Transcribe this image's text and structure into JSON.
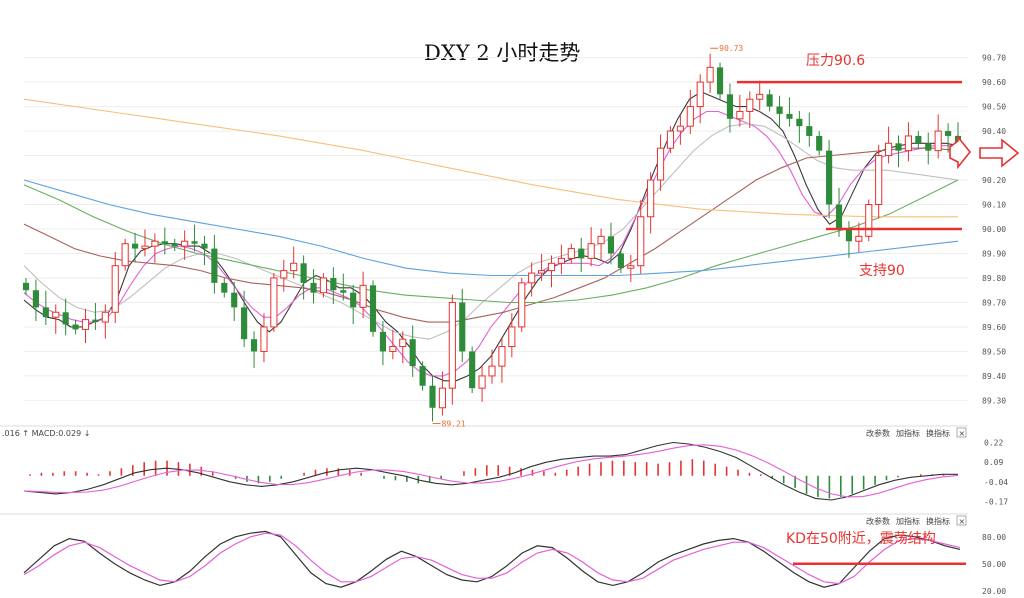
{
  "title": "DXY 2 小时走势",
  "chart_data": [
    {
      "panel": "price",
      "type": "candlestick",
      "title": "DXY 2 小时走势",
      "y_ticks": [
        "90.70",
        "90.60",
        "90.50",
        "90.40",
        "90.30",
        "90.20",
        "90.10",
        "90.00",
        "89.90",
        "89.80",
        "89.70",
        "89.60",
        "89.50",
        "89.40",
        "89.30"
      ],
      "ylim": [
        89.22,
        90.78
      ],
      "high_label": "90.73",
      "low_label": "89.21",
      "closes": [
        89.75,
        89.68,
        89.64,
        89.66,
        89.61,
        89.59,
        89.63,
        89.62,
        89.66,
        89.85,
        89.94,
        89.92,
        89.93,
        89.95,
        89.94,
        89.93,
        89.95,
        89.94,
        89.92,
        89.78,
        89.74,
        89.68,
        89.55,
        89.5,
        89.6,
        89.8,
        89.83,
        89.86,
        89.78,
        89.74,
        89.8,
        89.75,
        89.74,
        89.68,
        89.77,
        89.58,
        89.5,
        89.52,
        89.55,
        89.44,
        89.36,
        89.27,
        89.35,
        89.7,
        89.5,
        89.35,
        89.4,
        89.44,
        89.52,
        89.6,
        89.78,
        89.82,
        89.83,
        89.86,
        89.88,
        89.92,
        89.88,
        89.94,
        89.97,
        89.9,
        89.84,
        89.85,
        90.05,
        90.2,
        90.33,
        90.4,
        90.42,
        90.5,
        90.6,
        90.66,
        90.55,
        90.45,
        90.48,
        90.53,
        90.55,
        90.5,
        90.47,
        90.45,
        90.42,
        90.38,
        90.32,
        90.1,
        90.0,
        89.95,
        89.97,
        90.1,
        90.3,
        90.35,
        90.32,
        90.38,
        90.35,
        90.32,
        90.4,
        90.38,
        90.32
      ],
      "ma_series": [
        {
          "color": "#3a3a3a",
          "values": [
            89.71,
            89.67,
            89.64,
            89.63,
            89.6,
            89.6,
            89.62,
            89.64,
            89.72,
            89.85,
            89.91,
            89.93,
            89.94,
            89.94,
            89.93,
            89.93,
            89.9,
            89.84,
            89.77,
            89.69,
            89.62,
            89.58,
            89.62,
            89.7,
            89.78,
            89.81,
            89.79,
            89.76,
            89.76,
            89.73,
            89.68,
            89.62,
            89.58,
            89.52,
            89.45,
            89.4,
            89.38,
            89.38,
            89.4,
            89.43,
            89.48,
            89.56,
            89.64,
            89.72,
            89.79,
            89.84,
            89.86,
            89.88,
            89.89,
            89.88,
            89.86,
            89.9,
            90.0,
            90.12,
            90.24,
            90.35,
            90.45,
            90.53,
            90.56,
            90.54,
            90.52,
            90.5,
            90.5,
            90.48,
            90.45,
            90.4,
            90.3,
            90.18,
            90.08,
            90.02,
            90.05,
            90.15,
            90.25,
            90.31,
            90.33,
            90.34,
            90.35,
            90.35,
            90.35,
            90.35,
            90.34
          ]
        },
        {
          "color": "#e65fd8",
          "values": [
            89.74,
            89.7,
            89.67,
            89.65,
            89.63,
            89.62,
            89.62,
            89.64,
            89.7,
            89.78,
            89.85,
            89.9,
            89.92,
            89.93,
            89.92,
            89.9,
            89.86,
            89.8,
            89.74,
            89.68,
            89.64,
            89.64,
            89.68,
            89.73,
            89.76,
            89.76,
            89.74,
            89.72,
            89.69,
            89.64,
            89.58,
            89.52,
            89.46,
            89.42,
            89.4,
            89.4,
            89.42,
            89.46,
            89.52,
            89.6,
            89.66,
            89.72,
            89.78,
            89.82,
            89.85,
            89.86,
            89.86,
            89.86,
            89.85,
            89.88,
            89.94,
            90.04,
            90.14,
            90.24,
            90.33,
            90.4,
            90.45,
            90.48,
            90.48,
            90.46,
            90.44,
            90.42,
            90.38,
            90.32,
            90.24,
            90.14,
            90.07,
            90.05,
            90.1,
            90.18,
            90.24,
            90.28,
            90.3,
            90.31,
            90.32,
            90.33,
            90.34,
            90.34,
            90.34
          ]
        },
        {
          "color": "#bfbfbf",
          "values": [
            89.85,
            89.78,
            89.72,
            89.68,
            89.66,
            89.67,
            89.72,
            89.78,
            89.84,
            89.88,
            89.9,
            89.9,
            89.88,
            89.85,
            89.82,
            89.79,
            89.76,
            89.73,
            89.7,
            89.66,
            89.62,
            89.58,
            89.56,
            89.55,
            89.58,
            89.63,
            89.7,
            89.76,
            89.82,
            89.86,
            89.88,
            89.9,
            89.92,
            89.95,
            90.0,
            90.08,
            90.16,
            90.24,
            90.32,
            90.38,
            90.42,
            90.43,
            90.42,
            90.38,
            90.33,
            90.28,
            90.25,
            90.24,
            90.24,
            90.24,
            90.23,
            90.22,
            90.21,
            90.2
          ]
        },
        {
          "color": "#a8615c",
          "values": [
            90.02,
            89.97,
            89.92,
            89.89,
            89.87,
            89.86,
            89.85,
            89.83,
            89.8,
            89.78,
            89.77,
            89.76,
            89.74,
            89.71,
            89.67,
            89.64,
            89.62,
            89.62,
            89.64,
            89.66,
            89.69,
            89.72,
            89.76,
            89.8,
            89.86,
            89.92,
            89.99,
            90.06,
            90.13,
            90.2,
            90.25,
            90.29,
            90.3,
            90.31,
            90.32,
            90.33,
            90.33,
            90.32
          ]
        },
        {
          "color": "#6aae62",
          "values": [
            90.18,
            90.12,
            90.05,
            89.99,
            89.94,
            89.9,
            89.87,
            89.84,
            89.81,
            89.78,
            89.75,
            89.73,
            89.72,
            89.71,
            89.7,
            89.7,
            89.71,
            89.73,
            89.76,
            89.8,
            89.85,
            89.89,
            89.93,
            89.97,
            90.01,
            90.06,
            90.13,
            90.2
          ]
        },
        {
          "color": "#5aa2e0",
          "values": [
            90.2,
            90.15,
            90.1,
            90.06,
            90.03,
            90.0,
            89.97,
            89.93,
            89.88,
            89.84,
            89.82,
            89.81,
            89.81,
            89.81,
            89.81,
            89.82,
            89.83,
            89.85,
            89.87,
            89.89,
            89.91,
            89.93,
            89.95
          ]
        },
        {
          "color": "#f6c07a",
          "values": [
            90.53,
            90.48,
            90.43,
            90.38,
            90.32,
            90.25,
            90.18,
            90.12,
            90.08,
            90.06,
            90.05,
            90.05
          ]
        }
      ]
    },
    {
      "panel": "macd",
      "type": "bar+line",
      "legend_text": ".016 ↑ MACD:0.029 ↓",
      "y_ticks": [
        "0.22",
        "0.09",
        "-0.04",
        "-0.17"
      ],
      "ylim": [
        -0.2,
        0.25
      ],
      "histogram": [
        0.01,
        0.02,
        0.02,
        0.03,
        0.03,
        0.02,
        0.01,
        0.03,
        0.05,
        0.07,
        0.09,
        0.1,
        0.1,
        0.09,
        0.08,
        0.06,
        0.03,
        0.0,
        -0.02,
        -0.04,
        -0.05,
        -0.04,
        -0.02,
        0.0,
        0.02,
        0.04,
        0.05,
        0.05,
        0.04,
        0.02,
        0.0,
        -0.02,
        -0.03,
        -0.04,
        -0.05,
        -0.04,
        -0.02,
        0.0,
        0.03,
        0.05,
        0.07,
        0.07,
        0.06,
        0.05,
        0.04,
        0.03,
        0.02,
        0.04,
        0.06,
        0.08,
        0.09,
        0.1,
        0.1,
        0.09,
        0.09,
        0.08,
        0.09,
        0.1,
        0.11,
        0.1,
        0.08,
        0.06,
        0.04,
        0.02,
        0.01,
        -0.02,
        -0.05,
        -0.08,
        -0.12,
        -0.14,
        -0.15,
        -0.14,
        -0.12,
        -0.09,
        -0.06,
        -0.03,
        -0.01,
        0.0,
        0.01,
        0.01,
        0.01,
        0.0
      ],
      "macd_line": [
        -0.1,
        -0.11,
        -0.12,
        -0.11,
        -0.09,
        -0.06,
        -0.02,
        0.02,
        0.04,
        0.05,
        0.04,
        0.02,
        -0.01,
        -0.04,
        -0.06,
        -0.07,
        -0.06,
        -0.04,
        -0.01,
        0.02,
        0.04,
        0.05,
        0.04,
        0.02,
        0.0,
        -0.03,
        -0.05,
        -0.06,
        -0.05,
        -0.03,
        -0.01,
        0.02,
        0.06,
        0.09,
        0.11,
        0.12,
        0.13,
        0.13,
        0.14,
        0.17,
        0.2,
        0.22,
        0.21,
        0.19,
        0.16,
        0.12,
        0.06,
        0.0,
        -0.06,
        -0.11,
        -0.15,
        -0.16,
        -0.14,
        -0.1,
        -0.06,
        -0.03,
        -0.01,
        0.0,
        0.01,
        0.01
      ]
    },
    {
      "panel": "kd",
      "type": "line",
      "y_ticks": [
        "80.00",
        "50.00",
        "20.00"
      ],
      "ylim": [
        12,
        92
      ],
      "k_line": [
        40,
        55,
        70,
        78,
        75,
        62,
        50,
        40,
        32,
        26,
        30,
        42,
        58,
        72,
        80,
        84,
        86,
        80,
        60,
        40,
        28,
        24,
        30,
        42,
        55,
        64,
        58,
        48,
        38,
        32,
        30,
        36,
        48,
        62,
        70,
        68,
        56,
        42,
        30,
        26,
        30,
        40,
        52,
        60,
        66,
        72,
        76,
        78,
        74,
        64,
        52,
        40,
        30,
        24,
        28,
        46,
        64,
        78,
        82,
        80,
        76,
        70,
        66
      ],
      "d_line": [
        38,
        48,
        60,
        70,
        74,
        68,
        58,
        48,
        40,
        32,
        30,
        36,
        48,
        62,
        72,
        80,
        84,
        82,
        70,
        54,
        40,
        30,
        30,
        36,
        46,
        56,
        58,
        54,
        46,
        38,
        34,
        34,
        40,
        52,
        62,
        66,
        62,
        52,
        40,
        32,
        30,
        34,
        44,
        54,
        60,
        66,
        70,
        74,
        74,
        68,
        58,
        48,
        38,
        30,
        28,
        36,
        52,
        66,
        76,
        78,
        76,
        72,
        68
      ]
    }
  ],
  "annotations": {
    "resistance": {
      "label": "压力90.6",
      "value": 90.6
    },
    "support": {
      "label": "支持90",
      "value": 90.0
    },
    "kd_note": {
      "label": "KD在50附近，震荡结构",
      "value": 50
    }
  },
  "panel_buttons": [
    "改参数",
    "加指标",
    "换指标"
  ],
  "close_symbol": "×",
  "colors": {
    "up": "#e8322f",
    "down": "#2e8b3a",
    "annotation": "#e8322f",
    "arrow": "#e8322f"
  }
}
